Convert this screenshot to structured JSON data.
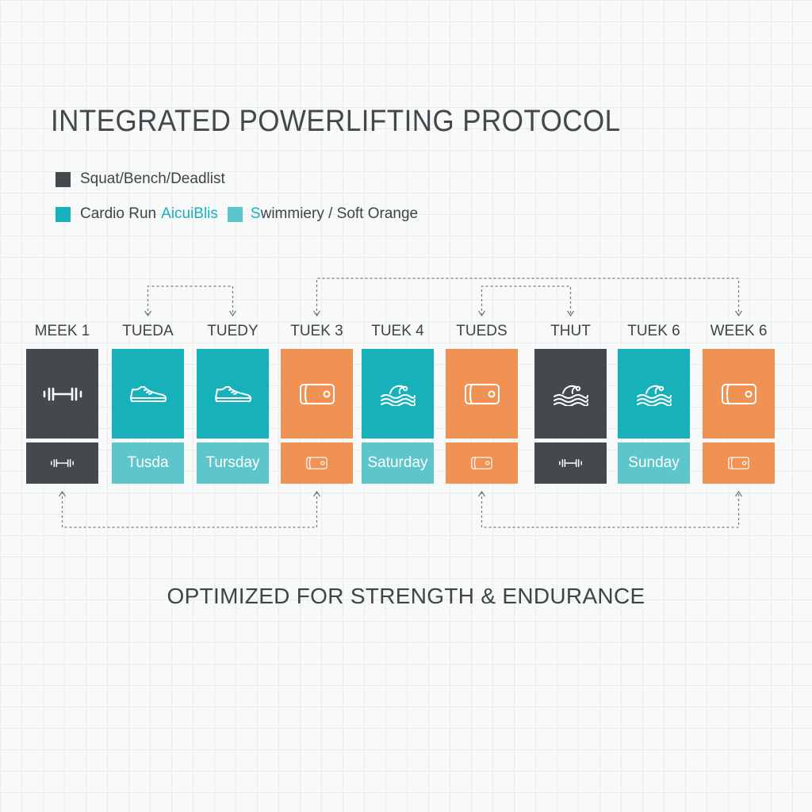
{
  "title": "INTEGRATED POWERLIFTING PROTOCOL",
  "legend": {
    "row1": {
      "label": "Squat/Bench/Deadlist",
      "color": "#44494d"
    },
    "row2": {
      "label1": "Cardio Run",
      "accent": "AicuiBlis",
      "accent_color": "#17b1bb",
      "swatch1_color": "#17b1bb",
      "swatch2_color": "#5cc6cc",
      "label2_highlight": "S",
      "label2_rest": "wimmiery / Soft Orange"
    }
  },
  "colors": {
    "dark": "#44494d",
    "teal": "#17b1bb",
    "light_teal": "#5cc6cc",
    "orange": "#ef9254",
    "connector": "#7a7f83"
  },
  "columns": [
    {
      "label": "MEEK 1",
      "top_color": "dark",
      "top_icon": "dumbbell-icon",
      "bottom_color": "dark",
      "bottom_icon": "dumbbell-icon",
      "bottom_text": ""
    },
    {
      "label": "TUEDA",
      "top_color": "teal",
      "top_icon": "sneaker-icon",
      "bottom_color": "light_teal",
      "bottom_icon": "",
      "bottom_text": "Tusda"
    },
    {
      "label": "TUEDY",
      "top_color": "teal",
      "top_icon": "sneaker-icon",
      "bottom_color": "light_teal",
      "bottom_icon": "",
      "bottom_text": "Tursday"
    },
    {
      "label": "TUEK 3",
      "top_color": "orange",
      "top_icon": "mat-icon",
      "bottom_color": "orange",
      "bottom_icon": "mat-icon",
      "bottom_text": ""
    },
    {
      "label": "TUEK 4",
      "top_color": "teal",
      "top_icon": "swim-icon",
      "bottom_color": "light_teal",
      "bottom_icon": "",
      "bottom_text": "Saturday"
    },
    {
      "label": "TUEDS",
      "top_color": "orange",
      "top_icon": "mat-icon",
      "bottom_color": "orange",
      "bottom_icon": "mat-icon",
      "bottom_text": ""
    },
    {
      "label": "THUT",
      "top_color": "dark",
      "top_icon": "swim-icon",
      "bottom_color": "dark",
      "bottom_icon": "dumbbell-icon",
      "bottom_text": ""
    },
    {
      "label": "TUEK 6",
      "top_color": "teal",
      "top_icon": "swim-icon",
      "bottom_color": "light_teal",
      "bottom_icon": "",
      "bottom_text": "Sunday"
    },
    {
      "label": "WEEK 6",
      "top_color": "orange",
      "top_icon": "mat-icon",
      "bottom_color": "orange",
      "bottom_icon": "mat-icon",
      "bottom_text": ""
    }
  ],
  "connectors": {
    "top": [
      {
        "from_col": 1,
        "to_col": 2,
        "arrows": "both",
        "level": "low"
      },
      {
        "from_col": 3,
        "to_col": 8,
        "arrows": "both",
        "level": "high"
      },
      {
        "from_col": 5,
        "to_col": 6,
        "arrows": "both",
        "level": "low"
      }
    ],
    "bottom": [
      {
        "from_col": 0,
        "to_col": 3,
        "arrows": "both"
      },
      {
        "from_col": 5,
        "to_col": 8,
        "arrows": "both"
      }
    ]
  },
  "footer": "OPTIMIZED FOR STRENGTH & ENDURANCE"
}
